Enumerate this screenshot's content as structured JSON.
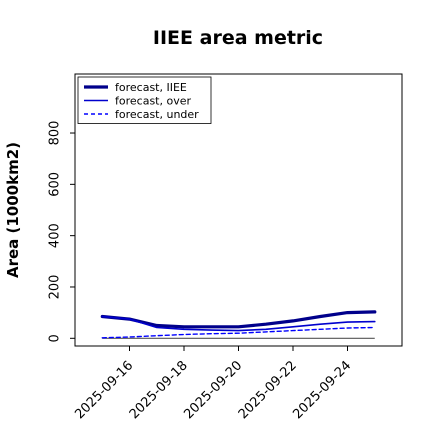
{
  "chart_data": {
    "type": "line",
    "title": "IIEE area metric",
    "xlabel": "",
    "ylabel": "Area (1000km2)",
    "x": [
      "2025-09-15",
      "2025-09-16",
      "2025-09-17",
      "2025-09-18",
      "2025-09-19",
      "2025-09-20",
      "2025-09-21",
      "2025-09-22",
      "2025-09-23",
      "2025-09-24",
      "2025-09-25"
    ],
    "xticks": [
      "2025-09-16",
      "2025-09-18",
      "2025-09-20",
      "2025-09-22",
      "2025-09-24"
    ],
    "xtick_colors": [
      "#228b22",
      "#000000",
      "#000000",
      "#000000",
      "#000000"
    ],
    "yticks": [
      0,
      200,
      400,
      600,
      800
    ],
    "ylim": [
      -30,
      1030
    ],
    "xlim": [
      "2025-09-14",
      "2025-09-26"
    ],
    "grid": false,
    "legend_position": "top-left",
    "series": [
      {
        "name": "forecast, IIEE",
        "color": "#00008b",
        "width": 3.2,
        "dash": "",
        "values": [
          85,
          75,
          50,
          45,
          45,
          45,
          55,
          68,
          85,
          100,
          103
        ]
      },
      {
        "name": "forecast, over",
        "color": "#0000cd",
        "width": 1.6,
        "dash": "",
        "values": [
          85,
          75,
          42,
          35,
          32,
          30,
          35,
          45,
          55,
          63,
          65
        ]
      },
      {
        "name": "forecast, under",
        "color": "#0000ff",
        "width": 1.4,
        "dash": "4,3",
        "values": [
          2,
          5,
          10,
          15,
          18,
          20,
          25,
          30,
          35,
          40,
          42
        ]
      }
    ],
    "baseline": {
      "value": 0,
      "color": "#555555"
    }
  }
}
